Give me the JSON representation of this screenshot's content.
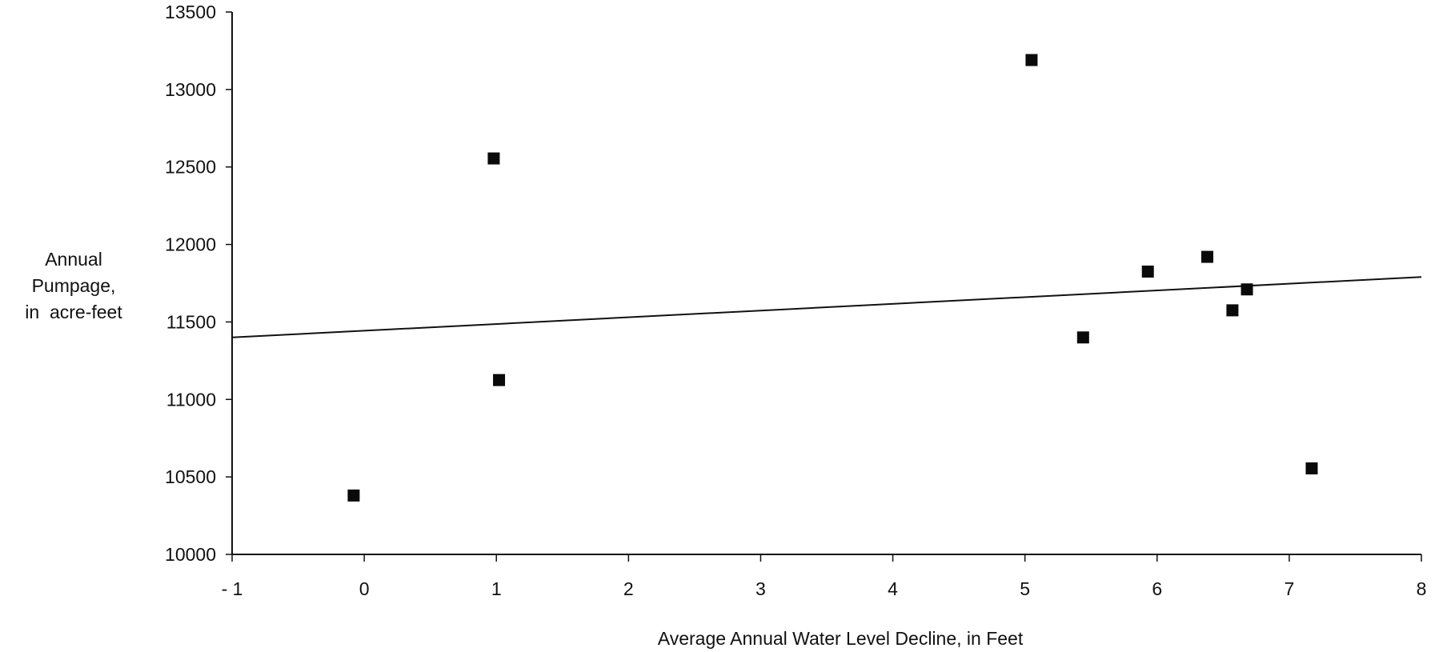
{
  "chart_data": {
    "type": "scatter",
    "title": "",
    "xlabel": "Average Annual Water Level Decline, in Feet",
    "ylabel": [
      "Annual",
      "Pumpage,",
      "in  acre-feet"
    ],
    "xlim": [
      -1,
      8
    ],
    "ylim": [
      10000,
      13500
    ],
    "x_ticks": [
      -1,
      0,
      1,
      2,
      3,
      4,
      5,
      6,
      7,
      8
    ],
    "x_tick_labels": [
      "- 1",
      "0",
      "1",
      "2",
      "3",
      "4",
      "5",
      "6",
      "7",
      "8"
    ],
    "y_ticks": [
      10000,
      10500,
      11000,
      11500,
      12000,
      12500,
      13000,
      13500
    ],
    "y_tick_labels": [
      "10000",
      "10500",
      "11000",
      "11500",
      "12000",
      "12500",
      "13000",
      "13500"
    ],
    "grid": false,
    "marker": "square",
    "points": [
      {
        "x": -0.08,
        "y": 10380
      },
      {
        "x": 0.98,
        "y": 12555
      },
      {
        "x": 1.02,
        "y": 11125
      },
      {
        "x": 5.05,
        "y": 13190
      },
      {
        "x": 5.44,
        "y": 11400
      },
      {
        "x": 5.93,
        "y": 11825
      },
      {
        "x": 6.38,
        "y": 11920
      },
      {
        "x": 6.57,
        "y": 11575
      },
      {
        "x": 6.68,
        "y": 11710
      },
      {
        "x": 7.17,
        "y": 10555
      }
    ],
    "trendline": {
      "x": [
        -1,
        8
      ],
      "y": [
        11400,
        11790
      ]
    }
  }
}
